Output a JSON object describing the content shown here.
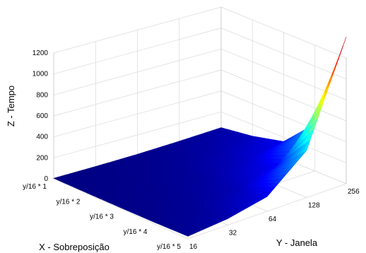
{
  "chart_data": {
    "type": "surface",
    "zlabel": "Z - Tempo",
    "xlabel": "X - Sobreposição",
    "ylabel": "Y - Janela",
    "x_categories": [
      "y/16 * 1",
      "y/16 * 2",
      "y/16 * 3",
      "y/16 * 4",
      "y/16 * 5"
    ],
    "y_categories": [
      "16",
      "32",
      "64",
      "128",
      "256"
    ],
    "z_ticks": [
      0,
      200,
      400,
      600,
      800,
      1000,
      1200
    ],
    "zlim": [
      0,
      1400
    ],
    "grid": true,
    "colormap": "jet",
    "z": [
      [
        5,
        8,
        15,
        30,
        50
      ],
      [
        7,
        12,
        25,
        50,
        90
      ],
      [
        10,
        20,
        40,
        90,
        160
      ],
      [
        15,
        30,
        70,
        160,
        450
      ],
      [
        25,
        60,
        140,
        450,
        1400
      ]
    ]
  }
}
